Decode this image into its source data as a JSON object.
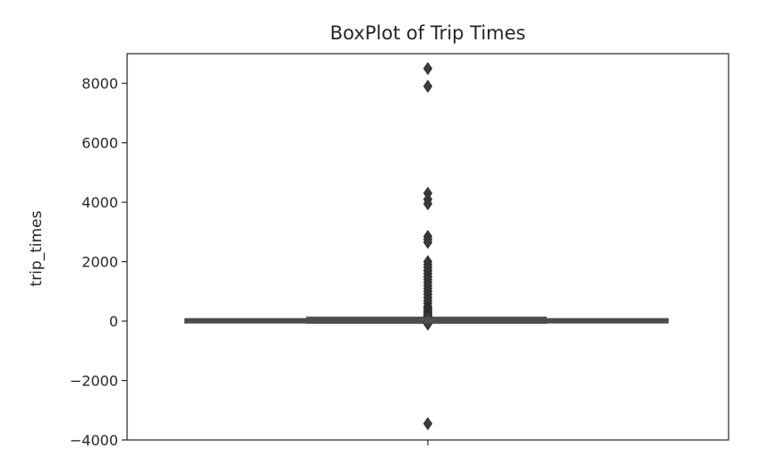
{
  "chart_data": {
    "type": "box",
    "title": "BoxPlot of Trip Times",
    "xlabel": "",
    "ylabel": "trip_times",
    "ylim": [
      -4000,
      9000
    ],
    "yticks": [
      -4000,
      -2000,
      0,
      2000,
      4000,
      6000,
      8000
    ],
    "ytick_labels": [
      "−4000",
      "−2000",
      "0",
      "2000",
      "4000",
      "6000",
      "8000"
    ],
    "grid": false,
    "box": {
      "q1": 0,
      "median": 10,
      "q3": 20,
      "whisker_low": -60,
      "whisker_high": 120
    },
    "outliers": [
      8500,
      7900,
      4300,
      4100,
      3950,
      2850,
      2750,
      2650,
      2000,
      1900,
      1800,
      1700,
      1600,
      1500,
      1400,
      1300,
      1200,
      1100,
      1000,
      900,
      800,
      700,
      600,
      500,
      450,
      400,
      350,
      300,
      250,
      200,
      180,
      160,
      140,
      -80,
      -100,
      -3450
    ],
    "colors": {
      "box": "#4c4c4c",
      "outlier": "#3d3d3d",
      "axes": "#262626"
    }
  }
}
